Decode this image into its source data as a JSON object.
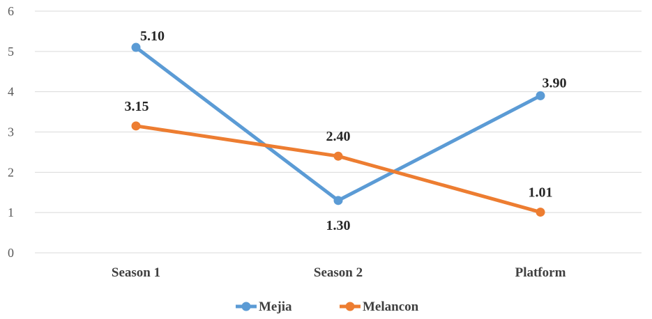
{
  "chart_data": {
    "type": "line",
    "title": "",
    "xlabel": "",
    "ylabel": "",
    "categories": [
      "Season 1",
      "Season 2",
      "Platform"
    ],
    "ylim": [
      0,
      6
    ],
    "yticks": [
      "0",
      "1",
      "2",
      "3",
      "4",
      "5",
      "6"
    ],
    "grid": true,
    "legend_position": "bottom",
    "series": [
      {
        "name": "Mejia",
        "color": "#5B9BD5",
        "values": [
          5.1,
          1.3,
          3.9
        ],
        "labels": [
          "5.10",
          "1.30",
          "3.90"
        ],
        "label_side": [
          "above",
          "below",
          "above"
        ]
      },
      {
        "name": "Melancon",
        "color": "#ED7D31",
        "values": [
          3.15,
          2.4,
          1.01
        ],
        "labels": [
          "3.15",
          "2.40",
          "1.01"
        ],
        "label_side": [
          "above",
          "above",
          "above"
        ]
      }
    ]
  }
}
